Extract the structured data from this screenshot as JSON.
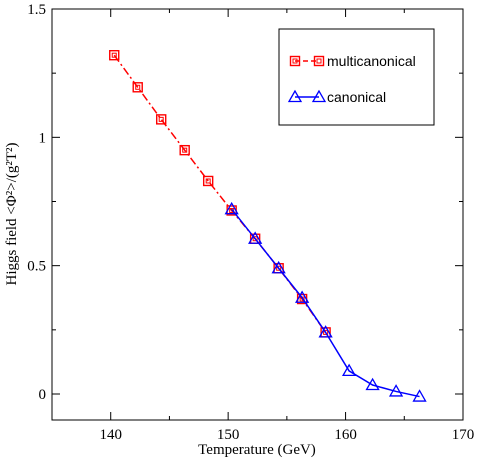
{
  "chart_data": {
    "type": "line",
    "xlabel": "Temperature (GeV)",
    "ylabel": "Higgs field <Φ²>/(g²T²)",
    "xlim": [
      135,
      170
    ],
    "ylim": [
      -0.05,
      1.5
    ],
    "xticks": [
      140,
      150,
      160,
      170
    ],
    "yticks": [
      0,
      0.5,
      1,
      1.5
    ],
    "xtick_labels": [
      "140",
      "150",
      "160",
      "170"
    ],
    "ytick_labels": [
      "0",
      "0.5",
      "1",
      "1.5"
    ],
    "grid": false,
    "legend_position": "top-right",
    "series": [
      {
        "name": "multicanonical",
        "color": "#ff0000",
        "line_style": "dash-dot",
        "marker": "square",
        "x": [
          140.3,
          142.3,
          144.3,
          146.3,
          148.3,
          150.3,
          152.3,
          154.3,
          156.3,
          158.3
        ],
        "y": [
          1.32,
          1.195,
          1.07,
          0.95,
          0.83,
          0.715,
          0.605,
          0.49,
          0.37,
          0.24
        ]
      },
      {
        "name": "canonical",
        "color": "#0000ff",
        "line_style": "solid",
        "marker": "triangle",
        "x": [
          150.3,
          152.3,
          154.3,
          156.3,
          158.3,
          160.3,
          162.3,
          164.3,
          166.3
        ],
        "y": [
          0.72,
          0.605,
          0.49,
          0.375,
          0.24,
          0.09,
          0.035,
          0.01,
          -0.01
        ]
      }
    ]
  }
}
